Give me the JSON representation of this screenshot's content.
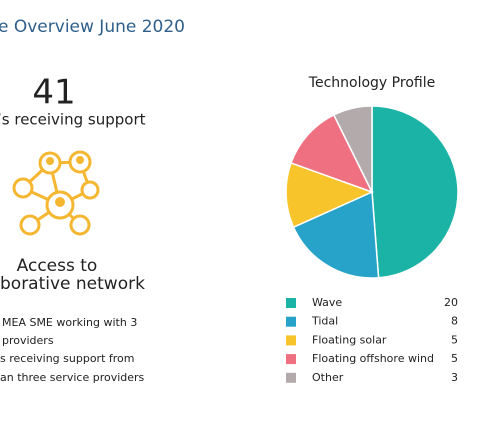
{
  "header": {
    "title": "e Overview June 2020"
  },
  "stats": {
    "count": "41",
    "count_label": "’s receiving support",
    "network_line1": "Access to",
    "network_line2": "borative network",
    "notes": [
      "MEA SME working with 3",
      "providers",
      "s receiving support from",
      "an three service providers"
    ]
  },
  "chart_data": {
    "type": "pie",
    "title": "Technology Profile",
    "categories": [
      "Wave",
      "Tidal",
      "Floating solar",
      "Floating offshore wind",
      "Other"
    ],
    "values": [
      20,
      8,
      5,
      5,
      3
    ],
    "colors": [
      "#1ab3a6",
      "#27a3c9",
      "#f7c42c",
      "#ef7080",
      "#b3aaac"
    ]
  }
}
